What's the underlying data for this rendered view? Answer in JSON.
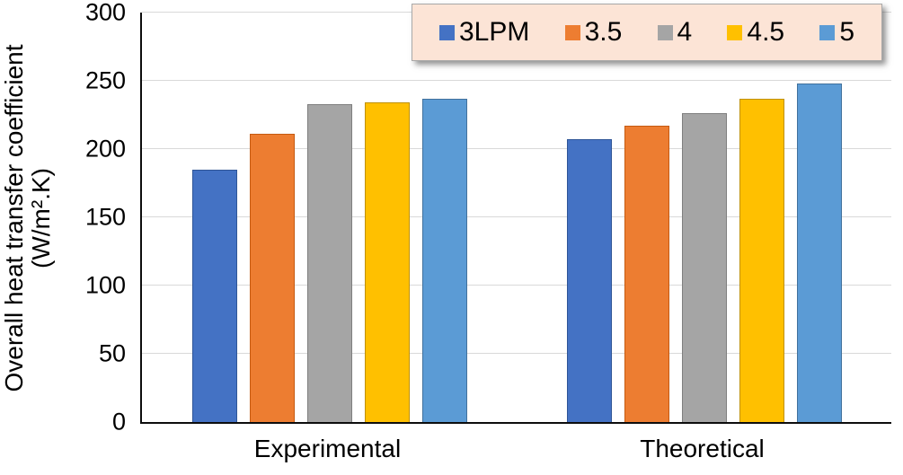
{
  "chart_data": {
    "type": "bar",
    "categories": [
      "Experimental",
      "Theoretical"
    ],
    "series": [
      {
        "name": "3LPM",
        "color": "#4472C4",
        "border_color": "#2F5597",
        "values": [
          185,
          207
        ]
      },
      {
        "name": "3.5",
        "color": "#ED7D31",
        "border_color": "#C55A11",
        "values": [
          211,
          217
        ]
      },
      {
        "name": "4",
        "color": "#A5A5A5",
        "border_color": "#7F7F7F",
        "values": [
          233,
          226
        ]
      },
      {
        "name": "4.5",
        "color": "#FFC000",
        "border_color": "#BF9000",
        "values": [
          234,
          237
        ]
      },
      {
        "name": "5",
        "color": "#5B9BD5",
        "border_color": "#41719C",
        "values": [
          237,
          248
        ]
      }
    ],
    "xlabel": "",
    "ylabel": "Overall heat transfer coefficient (W/m².K)",
    "ylabel_lines": [
      "Overall heat transfer coefficient",
      "(W/m².K)"
    ],
    "ylim": [
      0,
      300
    ],
    "yticks": [
      0,
      50,
      100,
      150,
      200,
      250,
      300
    ],
    "grid": "horizontal",
    "gridline_color": "#D9D9D9",
    "axis_color": "#0D0D0D",
    "legend_position": "top-right",
    "legend_background": "#FCE4D6",
    "legend_border_color": "#A9A9A9"
  }
}
